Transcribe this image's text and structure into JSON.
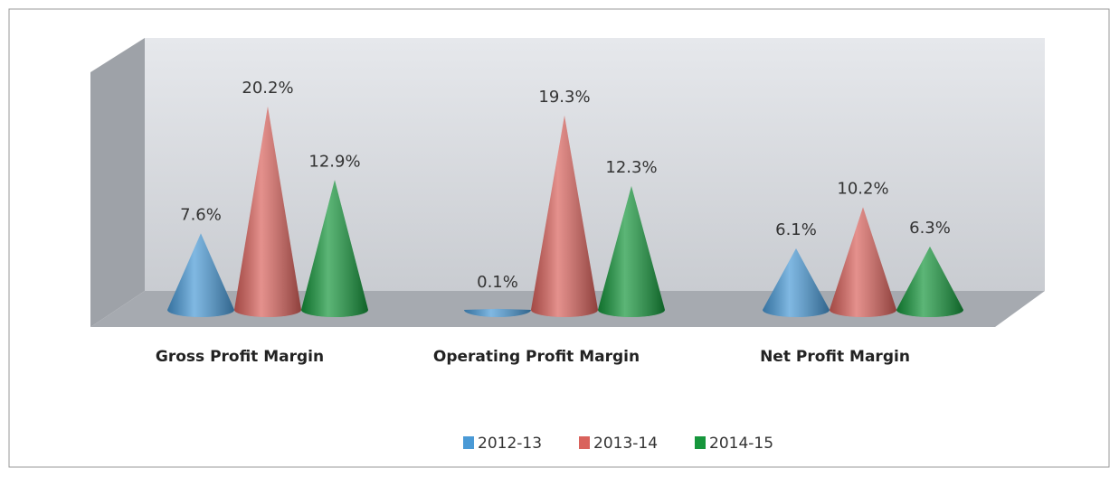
{
  "chart_data": {
    "type": "cone3d",
    "categories": [
      "Gross Profit Margin",
      "Operating  Profit Margin",
      "Net Profit Margin"
    ],
    "series": [
      {
        "name": "2012-13",
        "color": "#4a9ad6",
        "values": [
          7.6,
          0.1,
          6.1
        ],
        "value_labels": [
          "7.6%",
          "0.1%",
          "6.1%"
        ]
      },
      {
        "name": "2013-14",
        "color": "#d9625c",
        "values": [
          20.2,
          19.3,
          10.2
        ],
        "value_labels": [
          "20.2%",
          "19.3%",
          "10.2%"
        ]
      },
      {
        "name": "2014-15",
        "color": "#16963c",
        "values": [
          12.9,
          12.3,
          6.3
        ],
        "value_labels": [
          "12.9%",
          "12.3%",
          "6.3%"
        ]
      }
    ],
    "legend": "bottom"
  }
}
